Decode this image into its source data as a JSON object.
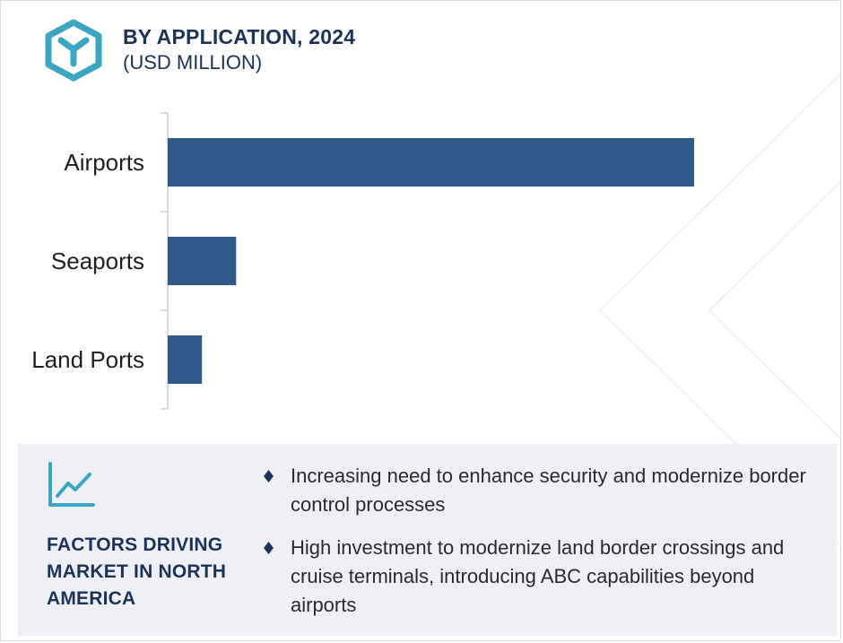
{
  "header": {
    "title": "BY APPLICATION, 2024",
    "subtitle": "(USD MILLION)",
    "logo_icon": "hexagon-y-logo-icon"
  },
  "colors": {
    "bar": "#2e5b8a",
    "title": "#1c3358",
    "logo": "#3aa6c2",
    "panel_bg": "#eef0f5"
  },
  "chart_data": {
    "type": "bar",
    "orientation": "horizontal",
    "categories": [
      "Airports",
      "Seaports",
      "Land Ports"
    ],
    "values": [
      100,
      13,
      6.5
    ],
    "xlim": [
      0,
      100
    ],
    "grid": false,
    "title": "BY APPLICATION, 2024",
    "xlabel": "",
    "ylabel": ""
  },
  "drivers": {
    "icon": "line-chart-trend-icon",
    "title": "FACTORS DRIVING MARKET IN NORTH AMERICA",
    "bullets": [
      "Increasing need to enhance security and modernize border control processes",
      "High investment to modernize land border crossings and cruise terminals, introducing ABC capabilities beyond airports"
    ]
  }
}
